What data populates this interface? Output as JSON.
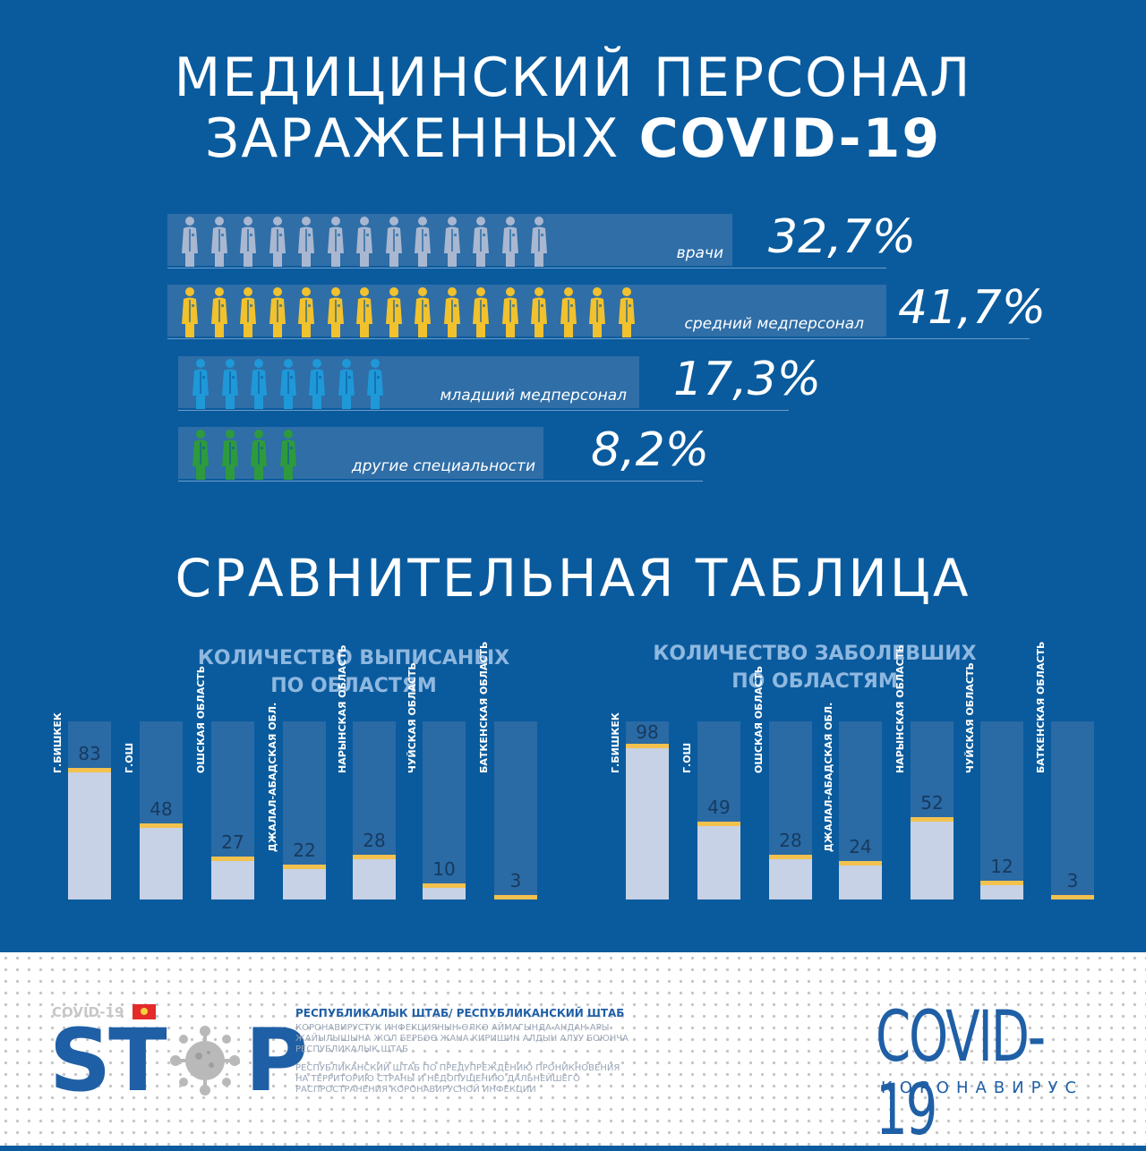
{
  "header": {
    "title_line1": "МЕДИЦИНСКИЙ ПЕРСОНАЛ",
    "title_line2_regular": "ЗАРАЖЕННЫХ ",
    "title_line2_bold": "COVID-19"
  },
  "categories": [
    {
      "label": "врачи",
      "percent": "32,7%",
      "color": "#a9b7d0",
      "icon": "doctor-person-icon"
    },
    {
      "label": "средний медперсонал",
      "percent": "41,7%",
      "color": "#f2c12e",
      "icon": "nurse-person-icon"
    },
    {
      "label": "младший медперсонал",
      "percent": "17,3%",
      "color": "#1f98d8",
      "icon": "junior-staff-person-icon"
    },
    {
      "label": "другие специальности",
      "percent": "8,2%",
      "color": "#2e9a3e",
      "icon": "other-staff-person-icon"
    }
  ],
  "section": {
    "title": "СРАВНИТЕЛЬНАЯ ТАБЛИЦА"
  },
  "chart_data": [
    {
      "type": "bar",
      "title_line1": "КОЛИЧЕСТВО ВЫПИСАНЫХ",
      "title_line2": "ПО ОБЛАСТЯМ",
      "categories": [
        "Г.БИШКЕК",
        "Г.ОШ",
        "ОШСКАЯ ОБЛАСТЬ",
        "ДЖАЛАЛ-АБАДСКАЯ ОБЛ.",
        "НАРЫНСКАЯ ОБЛАСТЬ",
        "ЧУЙСКАЯ ОБЛАСТЬ",
        "БАТКЕНСКАЯ ОБЛАСТЬ"
      ],
      "values": [
        83,
        48,
        27,
        22,
        28,
        10,
        3
      ],
      "ylim": [
        0,
        112
      ]
    },
    {
      "type": "bar",
      "title_line1": "КОЛИЧЕСТВО ЗАБОЛЕВШИХ",
      "title_line2": "ПО ОБЛАСТЯМ",
      "categories": [
        "Г.БИШКЕК",
        "Г.ОШ",
        "ОШСКАЯ ОБЛАСТЬ",
        "ДЖАЛАЛ-АБАДСКАЯ ОБЛ.",
        "НАРЫНСКАЯ ОБЛАСТЬ",
        "ЧУЙСКАЯ ОБЛАСТЬ",
        "БАТКЕНСКАЯ ОБЛАСТЬ"
      ],
      "values": [
        98,
        49,
        28,
        24,
        52,
        12,
        3
      ],
      "ylim": [
        0,
        112
      ]
    }
  ],
  "footer": {
    "covid_small": "COVID-19",
    "stop_s": "ST",
    "stop_p": "P",
    "hq_title": "РЕСПУБЛИКАЛЫК ШТАБ/ РЕСПУБЛИКАНСКИЙ ШТАБ",
    "hq_text_ky": "КОРОНАВИРУСТУК ИНФЕКЦИЯНЫН ӨЛКӨ АЙМАГЫНДА АНДАН АРЫ ЖАЙЫЛЫШЫНА ЖОЛ БЕРБӨӨ ЖАНА КИРИШИН АЛДЫН АЛУУ БОЮНЧА РЕСПУБЛИКАЛЫК ШТАБ",
    "hq_text_ru": "РЕСПУБЛИКАНСКИЙ ШТАБ ПО ПРЕДУПРЕЖДЕНИЮ ПРОНИКНОВЕНИЯ НА ТЕРРИТОРИЮ СТРАНЫ И НЕДОПУЩЕНИЮ ДАЛЬНЕЙШЕГО РАСПРОСТРАНЕНИЯ КОРОНАВИРУСНОЙ ИНФЕКЦИИ",
    "brand_big": "COVID-19",
    "brand_small": "КОРОНАВИРУС"
  }
}
